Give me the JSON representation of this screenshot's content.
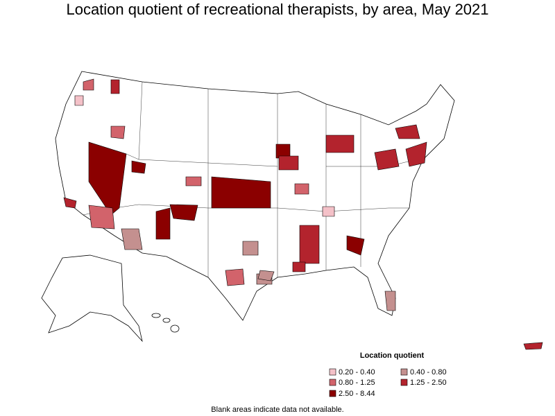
{
  "header": {
    "title": "Location quotient of recreational therapists, by area, May 2021"
  },
  "legend": {
    "title": "Location quotient",
    "items": [
      {
        "label": "0.20 - 0.40",
        "color": "#f4c1c8"
      },
      {
        "label": "0.40 - 0.80",
        "color": "#c4908f"
      },
      {
        "label": "0.80 - 1.25",
        "color": "#d2636b"
      },
      {
        "label": "1.25 - 2.50",
        "color": "#b3232d"
      },
      {
        "label": "2.50 - 8.44",
        "color": "#8b0000"
      }
    ]
  },
  "footnote": "Blank areas indicate data not available."
}
